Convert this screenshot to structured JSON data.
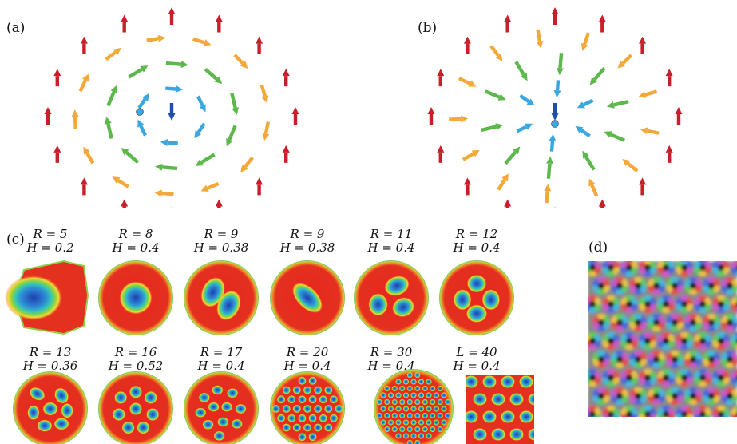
{
  "panels": {
    "a": {
      "label": "(a)"
    },
    "b": {
      "label": "(b)"
    },
    "c": {
      "label": "(c)"
    },
    "d": {
      "label": "(d)"
    }
  },
  "row1": [
    {
      "r": "R = 5",
      "h": "H = 0.2"
    },
    {
      "r": "R = 8",
      "h": "H = 0.4"
    },
    {
      "r": "R = 9",
      "h": "H = 0.38"
    },
    {
      "r": "R = 9",
      "h": "H = 0.38"
    },
    {
      "r": "R = 11",
      "h": "H = 0.4"
    },
    {
      "r": "R = 12",
      "h": "H = 0.4"
    }
  ],
  "row2": [
    {
      "r": "R = 13",
      "h": "H = 0.36"
    },
    {
      "r": "R = 16",
      "h": "H = 0.52"
    },
    {
      "r": "R = 17",
      "h": "H = 0.4"
    },
    {
      "r": "R = 20",
      "h": "H = 0.4"
    },
    {
      "r": "R = 30",
      "h": "H = 0.4"
    },
    {
      "r": "L = 40",
      "h": "H = 0.4"
    }
  ],
  "colors": {
    "red": "#c8202a",
    "orange": "#f2a93a",
    "green": "#5cb84a",
    "cyan": "#3aa7e0",
    "blue": "#1f4fa8"
  }
}
